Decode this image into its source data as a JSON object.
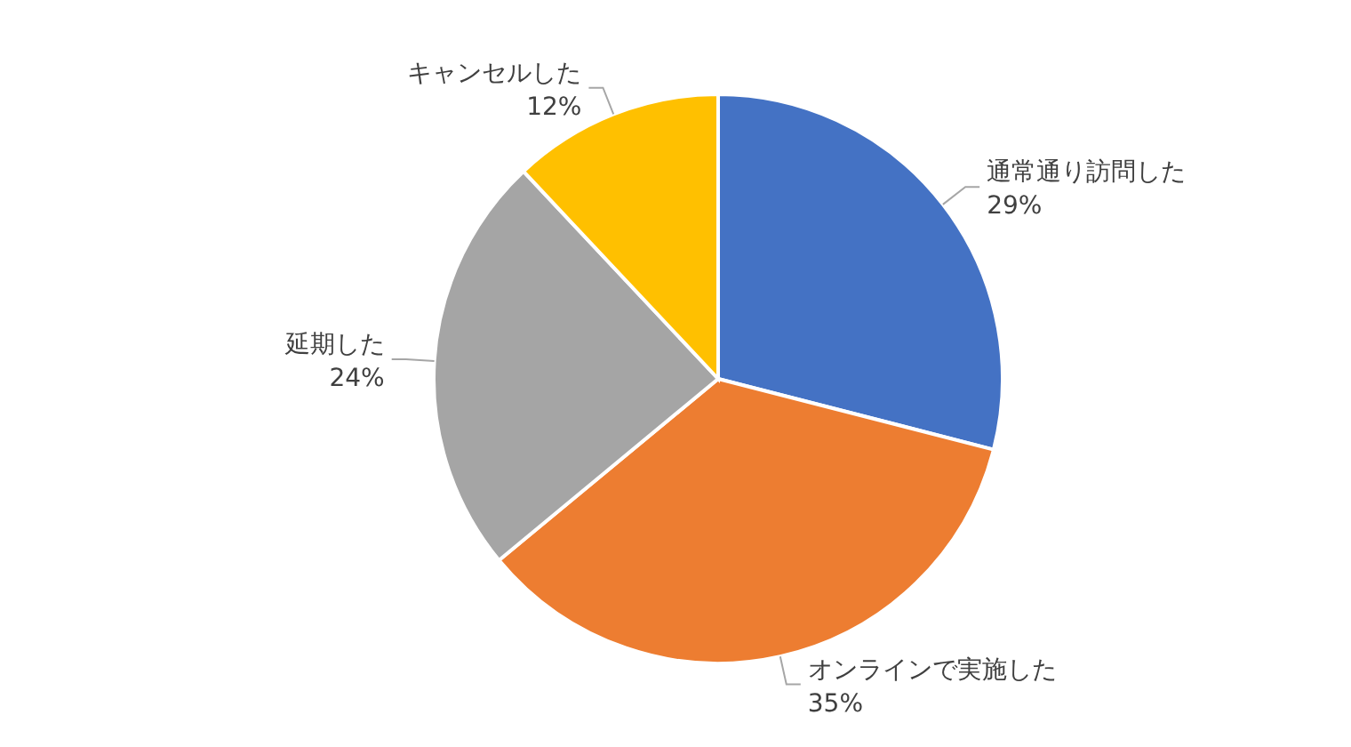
{
  "chart_data": {
    "type": "pie",
    "categories": [
      "通常通り訪問した",
      "オンラインで実施した",
      "延期した",
      "キャンセルした"
    ],
    "values": [
      29,
      35,
      24,
      12
    ],
    "value_labels": [
      "29%",
      "35%",
      "24%",
      "12%"
    ],
    "colors": [
      "#4472c4",
      "#ed7d31",
      "#a5a5a5",
      "#ffc000"
    ],
    "legend": false
  }
}
